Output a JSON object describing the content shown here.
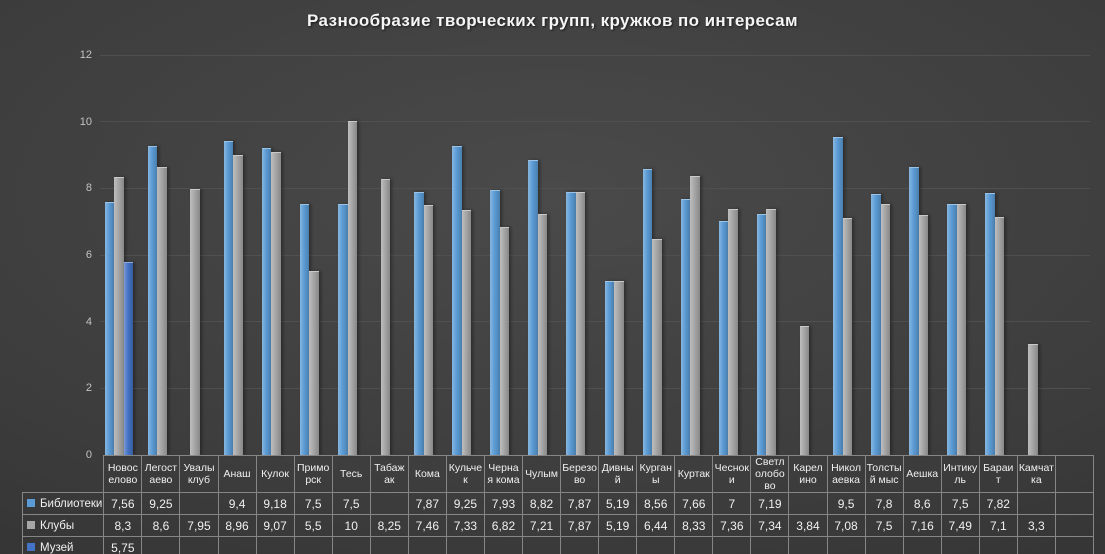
{
  "chart_data": {
    "type": "bar",
    "title": "Разнообразие творческих групп, кружков по интересам",
    "categories": [
      "Новоселово",
      "Легостаево",
      "Увалы клуб",
      "Анаш",
      "Кулок",
      "Приморск",
      "Тесь",
      "Табажак",
      "Кома",
      "Кульчек",
      "Черная кома",
      "Чулым",
      "Березово",
      "Дивный",
      "Курганы",
      "Куртак",
      "Чесноки",
      "Светлолобово",
      "Карелино",
      "Николаевка",
      "Толстый мыс",
      "Аешка",
      "Интикуль",
      "Бараит",
      "Камчатка",
      ""
    ],
    "series": [
      {
        "name": "Библиотеки",
        "color": "#5B9BD5",
        "values": [
          7.56,
          9.25,
          null,
          9.4,
          9.18,
          7.5,
          7.5,
          null,
          7.87,
          9.25,
          7.93,
          8.82,
          7.87,
          5.19,
          8.56,
          7.66,
          7,
          7.19,
          null,
          9.5,
          7.8,
          8.6,
          7.5,
          7.82,
          null,
          null
        ]
      },
      {
        "name": "Клубы",
        "color": "#A6A6A6",
        "values": [
          8.3,
          8.6,
          7.95,
          8.96,
          9.07,
          5.5,
          10,
          8.25,
          7.46,
          7.33,
          6.82,
          7.21,
          7.87,
          5.19,
          6.44,
          8.33,
          7.36,
          7.34,
          3.84,
          7.08,
          7.5,
          7.16,
          7.49,
          7.1,
          3.3,
          null
        ]
      },
      {
        "name": "Музей",
        "color": "#4472C4",
        "values": [
          5.75,
          null,
          null,
          null,
          null,
          null,
          null,
          null,
          null,
          null,
          null,
          null,
          null,
          null,
          null,
          null,
          null,
          null,
          null,
          null,
          null,
          null,
          null,
          null,
          null,
          null
        ]
      }
    ],
    "ylim": [
      0,
      12
    ],
    "yticks": [
      0,
      2,
      4,
      6,
      8,
      10,
      12
    ],
    "grid": true,
    "legend_position": "data-table-left",
    "decimal_separator": ","
  }
}
